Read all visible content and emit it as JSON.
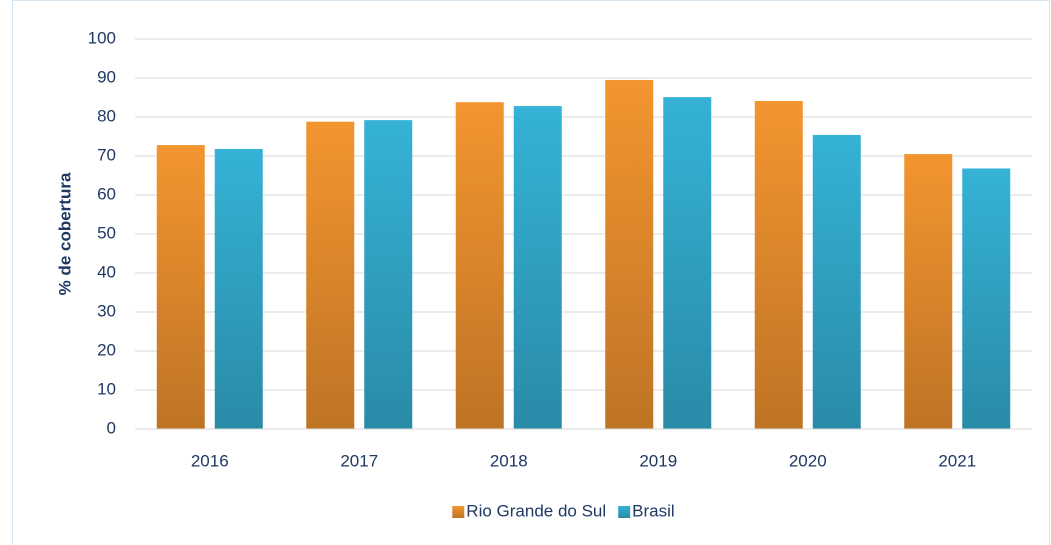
{
  "chart_data": {
    "type": "bar",
    "y_label": "% de cobertura",
    "categories": [
      "2016",
      "2017",
      "2018",
      "2019",
      "2020",
      "2021"
    ],
    "series": [
      {
        "name": "Rio Grande do Sul",
        "color": "#f39530",
        "values": [
          72.8,
          78.8,
          83.8,
          89.5,
          84.1,
          70.5
        ]
      },
      {
        "name": "Brasil",
        "color": "#35b2d6",
        "values": [
          71.8,
          79.2,
          82.8,
          85.1,
          75.4,
          66.8
        ]
      }
    ],
    "ylim": [
      0,
      100
    ],
    "yticks": [
      0,
      10,
      20,
      30,
      40,
      50,
      60,
      70,
      80,
      90,
      100
    ],
    "grid": true,
    "legend": "bottom"
  }
}
